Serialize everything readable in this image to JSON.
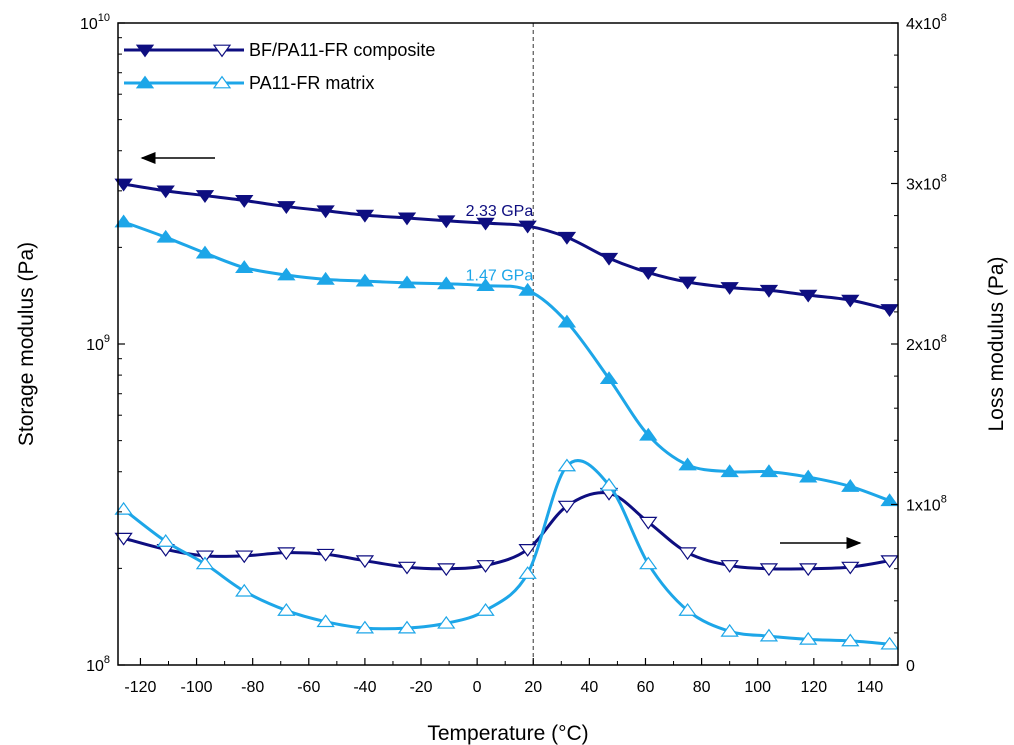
{
  "chart_data": {
    "type": "line",
    "title": "",
    "xlabel": "Temperature (°C)",
    "ylabel_left": "Storage modulus (Pa)",
    "ylabel_right": "Loss modulus (Pa)",
    "xlim": [
      -128,
      150
    ],
    "ylim_left": [
      100000000,
      10000000000
    ],
    "ylim_left_scale": "log",
    "ylim_right": [
      0,
      400000000
    ],
    "x_ticks": [
      -120,
      -100,
      -80,
      -60,
      -40,
      -20,
      0,
      20,
      40,
      60,
      80,
      100,
      120,
      140
    ],
    "y_left_ticks": [
      {
        "base": "10",
        "exp": "8"
      },
      {
        "base": "10",
        "exp": "9"
      },
      {
        "base": "10",
        "exp": "10"
      }
    ],
    "y_right_ticks": [
      {
        "base": "0",
        "exp": ""
      },
      {
        "base": "1x10",
        "exp": "8"
      },
      {
        "base": "2x10",
        "exp": "8"
      },
      {
        "base": "3x10",
        "exp": "8"
      },
      {
        "base": "4x10",
        "exp": "8"
      }
    ],
    "vertical_reference_x": 20,
    "legend_placement": "top-left",
    "legend": [
      {
        "label": "BF/PA11-FR composite",
        "color": "#0e0e80"
      },
      {
        "label": "PA11-FR matrix",
        "color": "#1da6e8"
      }
    ],
    "annotations": [
      {
        "text": "2.33 GPa",
        "x": 20,
        "y": 2330000000,
        "color": "#0e0e80"
      },
      {
        "text": "1.47 GPa",
        "x": 20,
        "y": 1470000000,
        "color": "#1da6e8"
      }
    ],
    "arrows": [
      {
        "direction": "left",
        "axis": "left"
      },
      {
        "direction": "right",
        "axis": "right"
      }
    ],
    "series": [
      {
        "name": "BF/PA11-FR composite",
        "measure": "storage modulus",
        "axis": "left",
        "color": "#0e0e80",
        "marker": "filled-down-triangle",
        "x": [
          -126,
          -111,
          -97,
          -83,
          -68,
          -54,
          -40,
          -25,
          -11,
          3,
          18,
          32,
          47,
          61,
          75,
          90,
          104,
          118,
          133,
          147
        ],
        "y": [
          3150000000,
          3000000000,
          2900000000,
          2800000000,
          2680000000,
          2600000000,
          2520000000,
          2470000000,
          2420000000,
          2380000000,
          2330000000,
          2150000000,
          1850000000,
          1670000000,
          1560000000,
          1500000000,
          1470000000,
          1420000000,
          1370000000,
          1280000000
        ]
      },
      {
        "name": "PA11-FR matrix",
        "measure": "storage modulus",
        "axis": "left",
        "color": "#1da6e8",
        "marker": "filled-up-triangle",
        "x": [
          -126,
          -111,
          -97,
          -83,
          -68,
          -54,
          -40,
          -25,
          -11,
          3,
          18,
          32,
          47,
          61,
          75,
          90,
          104,
          118,
          133,
          147
        ],
        "y": [
          2400000000,
          2150000000,
          1920000000,
          1730000000,
          1640000000,
          1590000000,
          1570000000,
          1550000000,
          1540000000,
          1520000000,
          1470000000,
          1170000000,
          780000000,
          520000000,
          420000000,
          400000000,
          400000000,
          385000000,
          360000000,
          325000000
        ]
      },
      {
        "name": "BF/PA11-FR composite",
        "measure": "loss modulus",
        "axis": "right",
        "color": "#0e0e80",
        "marker": "open-down-triangle",
        "x": [
          -126,
          -111,
          -97,
          -83,
          -68,
          -54,
          -40,
          -25,
          -11,
          3,
          18,
          32,
          47,
          61,
          75,
          90,
          104,
          118,
          133,
          147
        ],
        "y": [
          79000000,
          72000000,
          68000000,
          68000000,
          70000000,
          69000000,
          65000000,
          61000000,
          60000000,
          62000000,
          72000000,
          99000000,
          107000000,
          89000000,
          70000000,
          62000000,
          60000000,
          60000000,
          61000000,
          65000000
        ]
      },
      {
        "name": "PA11-FR matrix",
        "measure": "loss modulus",
        "axis": "right",
        "color": "#1da6e8",
        "marker": "open-up-triangle",
        "x": [
          -126,
          -111,
          -97,
          -83,
          -68,
          -54,
          -40,
          -25,
          -11,
          3,
          18,
          32,
          47,
          61,
          75,
          90,
          104,
          118,
          133,
          147
        ],
        "y": [
          97000000,
          77000000,
          63000000,
          46000000,
          34000000,
          27000000,
          23000000,
          23000000,
          26000000,
          34000000,
          57000000,
          124000000,
          112000000,
          63000000,
          34000000,
          21000000,
          18000000,
          16000000,
          15000000,
          13000000
        ]
      }
    ]
  }
}
